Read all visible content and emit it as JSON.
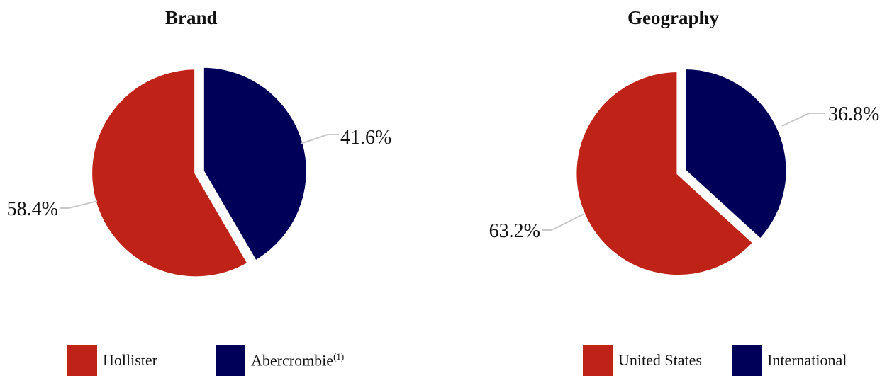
{
  "chart_data": [
    {
      "type": "pie",
      "title": "Brand",
      "slices": [
        {
          "name": "Abercrombie",
          "value": 41.6,
          "label": "41.6%",
          "color": "#000059"
        },
        {
          "name": "Hollister",
          "value": 58.4,
          "label": "58.4%",
          "color": "#BF2317"
        }
      ],
      "legend": [
        {
          "name": "Hollister",
          "superscript": "",
          "color": "#BF2317"
        },
        {
          "name": "Abercrombie",
          "superscript": "(1)",
          "color": "#000059"
        }
      ],
      "legend_position": "bottom"
    },
    {
      "type": "pie",
      "title": "Geography",
      "slices": [
        {
          "name": "International",
          "value": 36.8,
          "label": "36.8%",
          "color": "#000059"
        },
        {
          "name": "United States",
          "value": 63.2,
          "label": "63.2%",
          "color": "#BF2317"
        }
      ],
      "legend": [
        {
          "name": "United States",
          "superscript": "",
          "color": "#BF2317"
        },
        {
          "name": "International",
          "superscript": "",
          "color": "#000059"
        }
      ],
      "legend_position": "bottom"
    }
  ]
}
